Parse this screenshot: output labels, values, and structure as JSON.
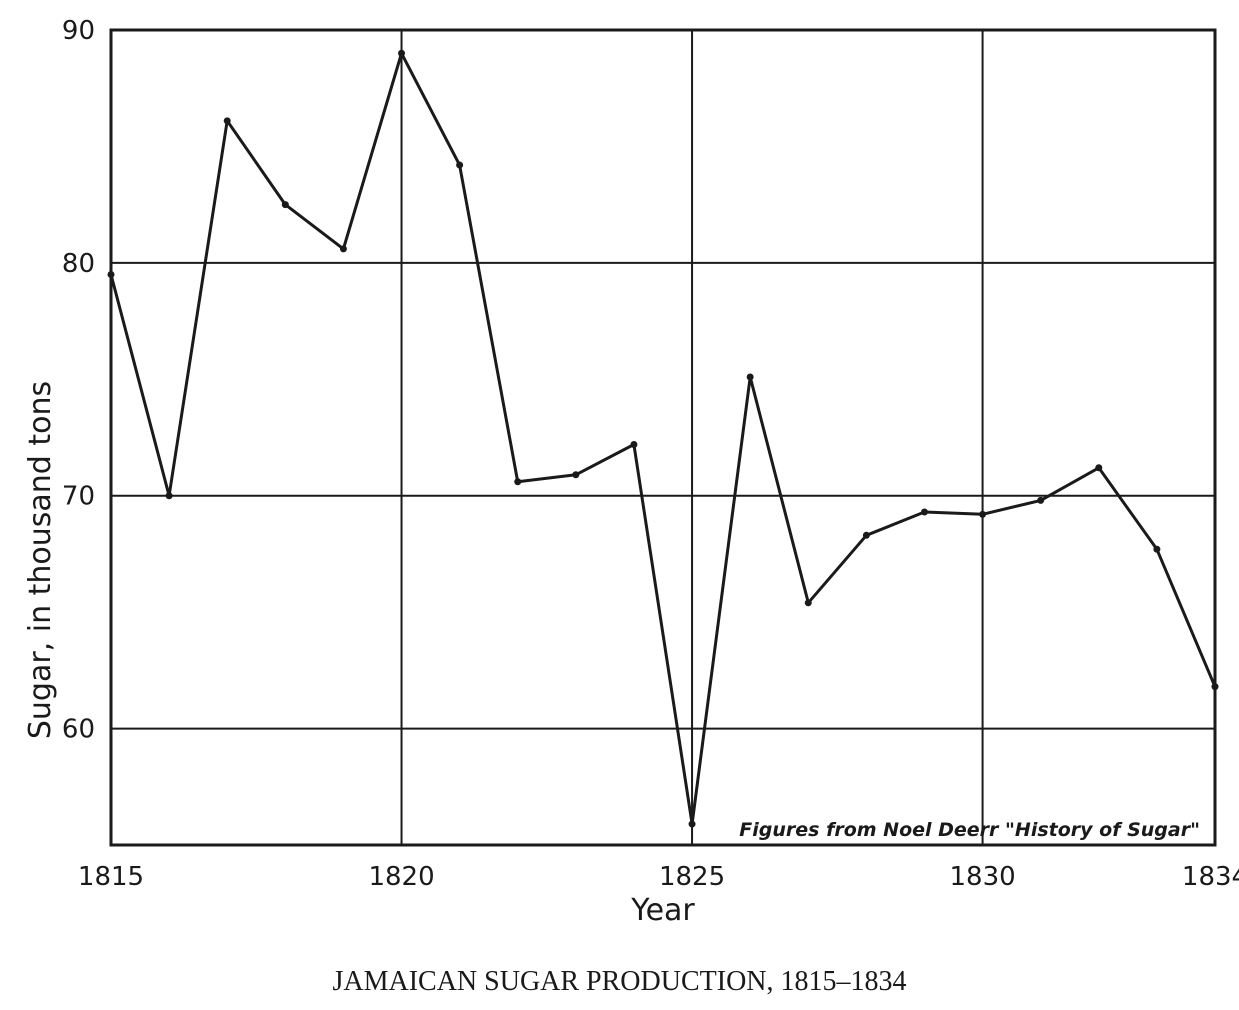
{
  "caption": "JAMAICAN SUGAR PRODUCTION, 1815–1834",
  "chart_data": {
    "type": "line",
    "title": "",
    "xlabel": "Year",
    "ylabel": "Sugar, in thousand tons",
    "x_ticks": [
      1815,
      1820,
      1825,
      1830,
      1834
    ],
    "y_ticks": [
      60,
      70,
      80,
      90
    ],
    "xlim": [
      1815,
      1834
    ],
    "ylim": [
      55,
      90
    ],
    "grid": true,
    "annotation": "Figures from Noel Deerr \"History of Sugar\"",
    "series": [
      {
        "x": [
          1815,
          1816,
          1817,
          1818,
          1819,
          1820,
          1821,
          1822,
          1823,
          1824,
          1825,
          1826,
          1827,
          1828,
          1829,
          1830,
          1831,
          1832,
          1833,
          1834
        ],
        "values": [
          79.5,
          70.0,
          86.1,
          82.5,
          80.6,
          89.0,
          84.2,
          70.6,
          70.9,
          72.2,
          55.9,
          75.1,
          65.4,
          68.3,
          69.3,
          69.2,
          69.8,
          71.2,
          67.7,
          61.8
        ]
      }
    ],
    "line_color": "#1a1a1a"
  }
}
